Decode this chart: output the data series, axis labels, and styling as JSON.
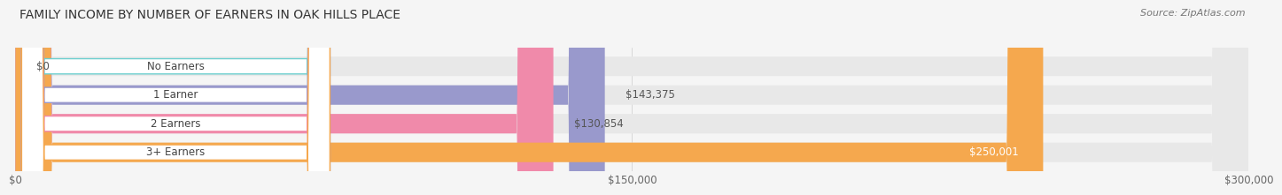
{
  "title": "FAMILY INCOME BY NUMBER OF EARNERS IN OAK HILLS PLACE",
  "source": "Source: ZipAtlas.com",
  "categories": [
    "No Earners",
    "1 Earner",
    "2 Earners",
    "3+ Earners"
  ],
  "values": [
    0,
    143375,
    130854,
    250001
  ],
  "bar_colors": [
    "#6dcfcf",
    "#9999cc",
    "#f08aaa",
    "#f5a84e"
  ],
  "value_labels": [
    "$0",
    "$143,375",
    "$130,854",
    "$250,001"
  ],
  "inside_label": [
    false,
    false,
    false,
    true
  ],
  "xlim_max": 300000,
  "xtick_labels": [
    "$0",
    "$150,000",
    "$300,000"
  ],
  "xtick_values": [
    0,
    150000,
    300000
  ],
  "background_color": "#f5f5f5",
  "bar_bg_color": "#e8e8e8",
  "title_fontsize": 10,
  "source_fontsize": 8,
  "label_fontsize": 8.5,
  "value_fontsize": 8.5
}
